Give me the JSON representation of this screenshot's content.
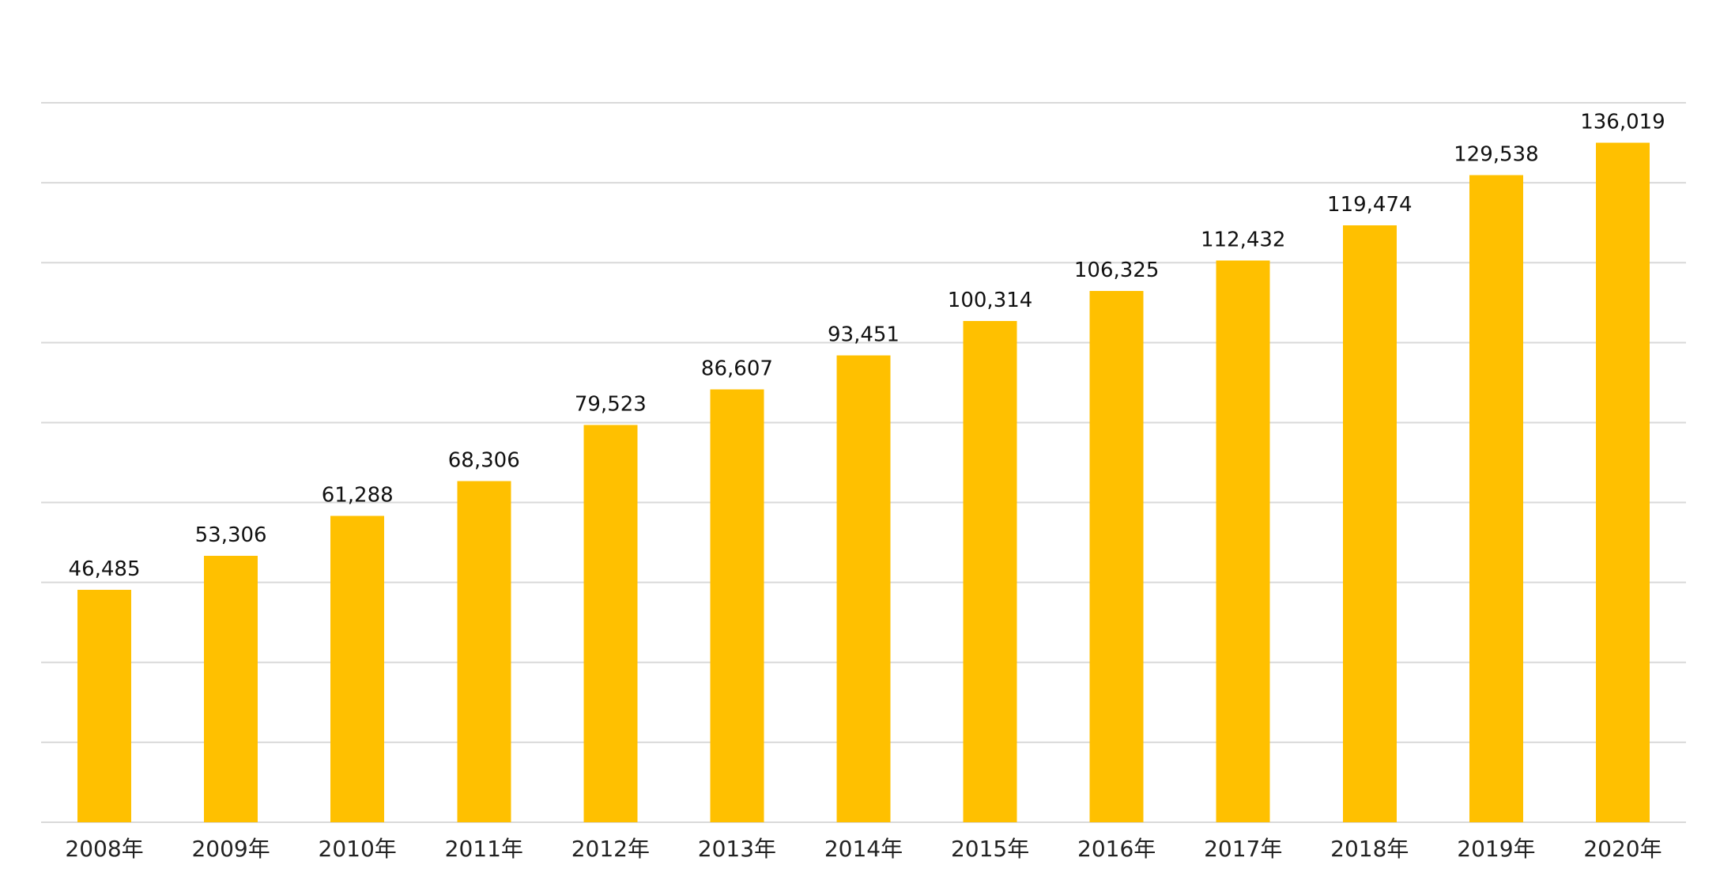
{
  "colors": {
    "bar": "#FFC000",
    "grid": "#D9D9D9",
    "text": "#111111",
    "background": "#FFFFFF"
  },
  "chart_data": {
    "type": "bar",
    "title": "",
    "xlabel": "",
    "ylabel": "",
    "grid": true,
    "legend": "none",
    "ylim": [
      0,
      144000
    ],
    "y_grid_step": 16000,
    "categories": [
      "2008年",
      "2009年",
      "2010年",
      "2011年",
      "2012年",
      "2013年",
      "2014年",
      "2015年",
      "2016年",
      "2017年",
      "2018年",
      "2019年",
      "2020年"
    ],
    "values": [
      46485,
      53306,
      61288,
      68306,
      79523,
      86607,
      93451,
      100314,
      106325,
      112432,
      119474,
      129538,
      136019
    ],
    "value_labels": [
      "46,485",
      "53,306",
      "61,288",
      "68,306",
      "79,523",
      "86,607",
      "93,451",
      "100,314",
      "106,325",
      "112,432",
      "119,474",
      "129,538",
      "136,019"
    ]
  }
}
